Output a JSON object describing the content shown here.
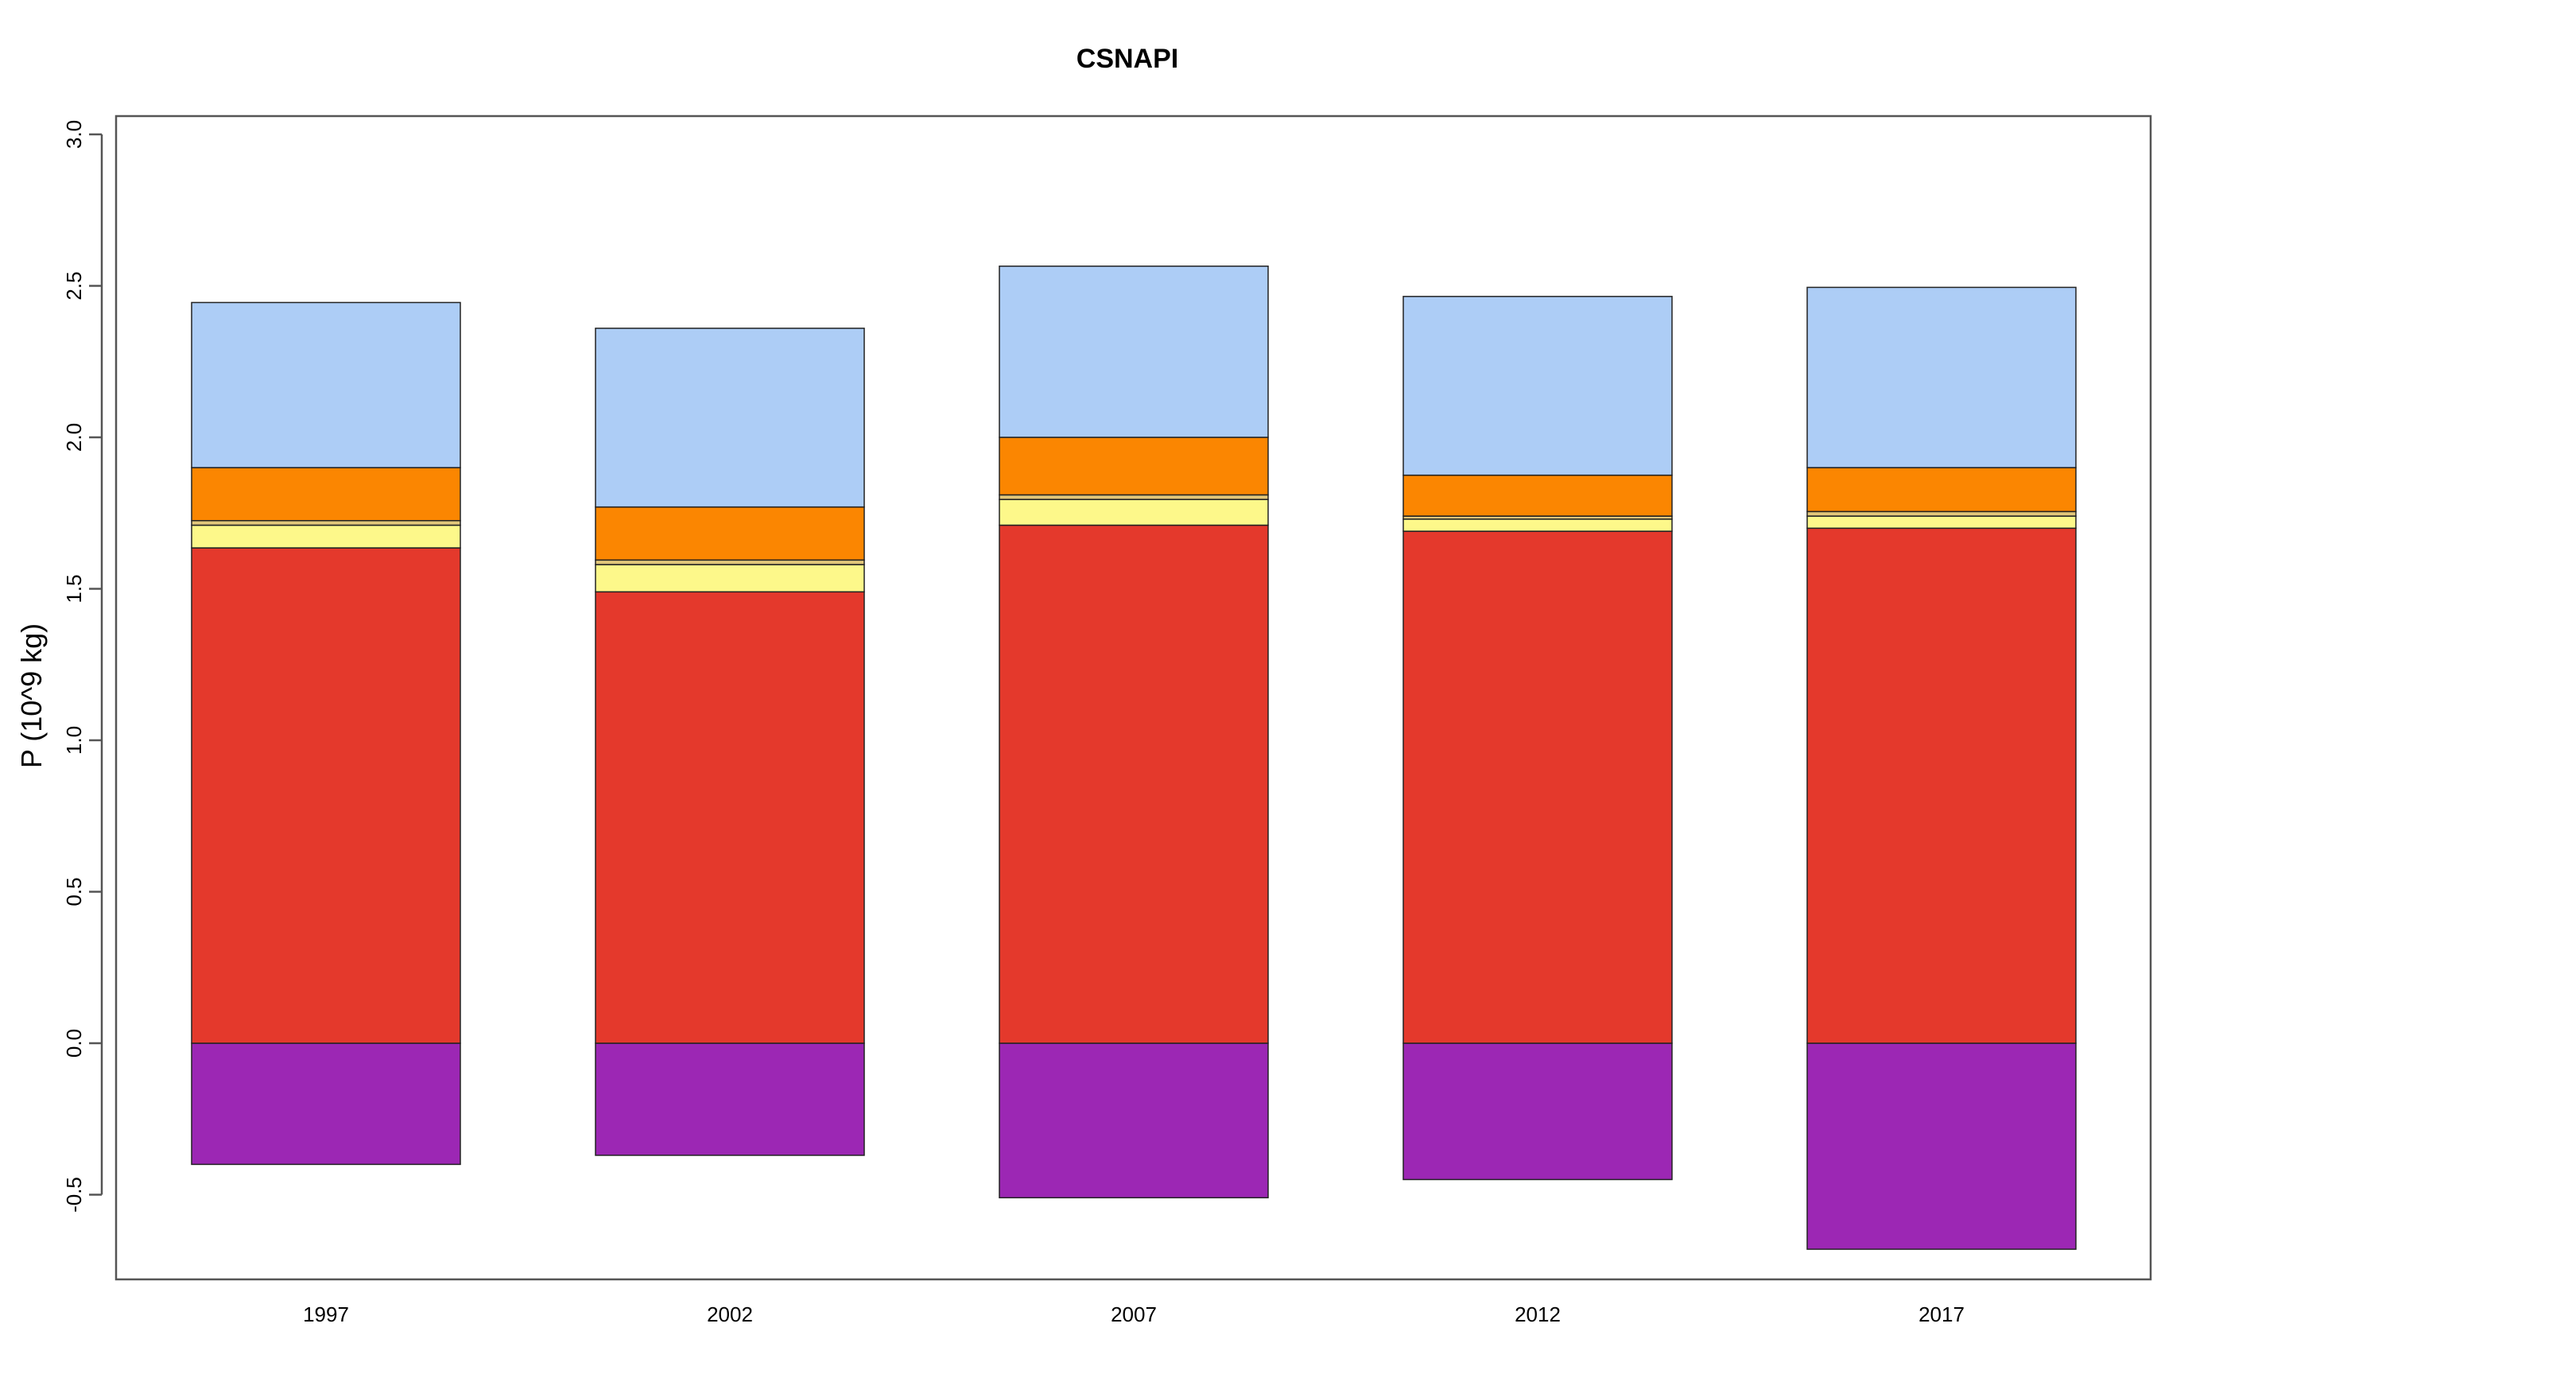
{
  "chart_data": {
    "type": "bar",
    "stacked": true,
    "title": "CSNAPI",
    "xlabel": "",
    "ylabel": "P (10^9 kg)",
    "ylim": [
      -0.75,
      3.0
    ],
    "yticks": [
      "-0.5",
      "0.0",
      "0.5",
      "1.0",
      "1.5",
      "2.0",
      "2.5",
      "3.0"
    ],
    "yticks_values": [
      -0.5,
      0.0,
      0.5,
      1.0,
      1.5,
      2.0,
      2.5,
      3.0
    ],
    "categories": [
      "1997",
      "2002",
      "2007",
      "2012",
      "2017"
    ],
    "legend": "none",
    "grid": false,
    "series": [
      {
        "color": "#9c27b4",
        "values": [
          -0.4,
          -0.37,
          -0.51,
          -0.45,
          -0.68
        ]
      },
      {
        "color": "#e4392c",
        "values": [
          1.635,
          1.49,
          1.71,
          1.69,
          1.7
        ]
      },
      {
        "color": "#fdf88a",
        "values": [
          0.075,
          0.09,
          0.085,
          0.04,
          0.04
        ]
      },
      {
        "color": "#e1c67a",
        "values": [
          0.015,
          0.015,
          0.015,
          0.01,
          0.015
        ]
      },
      {
        "color": "#fb8601",
        "values": [
          0.175,
          0.175,
          0.19,
          0.135,
          0.145
        ]
      },
      {
        "color": "#adcdf6",
        "values": [
          0.545,
          0.59,
          0.565,
          0.59,
          0.595
        ]
      }
    ]
  }
}
